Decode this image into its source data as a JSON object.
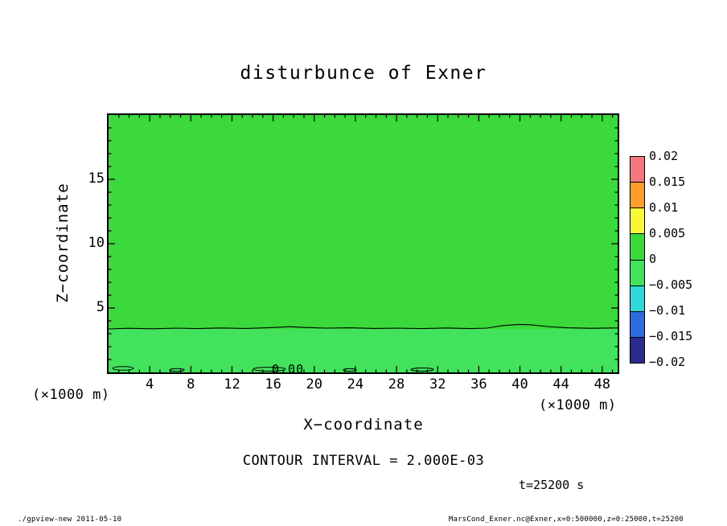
{
  "title": "disturbunce of Exner",
  "axes": {
    "x_label": "X−coordinate",
    "y_label": "Z−coordinate",
    "unit": "(×1000 m)",
    "x_ticks": [
      4,
      8,
      12,
      16,
      20,
      24,
      28,
      32,
      36,
      40,
      44,
      48
    ],
    "y_ticks": [
      5,
      10,
      15
    ]
  },
  "colorbar": {
    "labels": [
      "0.02",
      "0.015",
      "0.01",
      "0.005",
      "0",
      "−0.005",
      "−0.01",
      "−0.015",
      "−0.02"
    ],
    "colors": [
      "#f2787c",
      "#ff9e2a",
      "#f8f838",
      "#3bd93b",
      "#42e25c",
      "#2fd9d9",
      "#2e6be0",
      "#2b2b8f"
    ]
  },
  "contour_label": "0.00",
  "contour_interval_text": "CONTOUR INTERVAL = 2.000E-03",
  "time_text": "t=25200 s",
  "footer": {
    "left": "./gpview-new  2011-05-10",
    "right": "MarsCond_Exner.nc@Exner,x=0:500000,z=0:25000,t=25200"
  },
  "chart_data": {
    "type": "heatmap",
    "title": "disturbunce of Exner",
    "xlabel": "X-coordinate (×1000 m)",
    "ylabel": "Z-coordinate (×1000 m)",
    "xlim": [
      0,
      49.5
    ],
    "ylim": [
      0,
      20
    ],
    "x_ticks": [
      4,
      8,
      12,
      16,
      20,
      24,
      28,
      32,
      36,
      40,
      44,
      48
    ],
    "y_ticks": [
      5,
      10,
      15
    ],
    "levels": [
      -0.02,
      -0.015,
      -0.01,
      -0.005,
      0,
      0.005,
      0.01,
      0.015,
      0.02
    ],
    "level_colors_top_to_bottom": [
      "#f2787c",
      "#ff9e2a",
      "#f8f838",
      "#3bd93b",
      "#42e25c",
      "#2fd9d9",
      "#2e6be0",
      "#2b2b8f"
    ],
    "contour_interval": 0.002,
    "time_seconds": 25200,
    "field": "Exner function disturbance, nearly uniform and close to 0 over the whole domain",
    "zero_contour": {
      "label": "0.00",
      "z_mean": 3.4,
      "note": "wavy zero contour near z≈3.4 (×1000 m); shading 0 to +0.005 above the line, −0.005 to 0 below it; small closed 0-contours hug the bottom boundary"
    },
    "legend_position": "right",
    "grid": false
  }
}
